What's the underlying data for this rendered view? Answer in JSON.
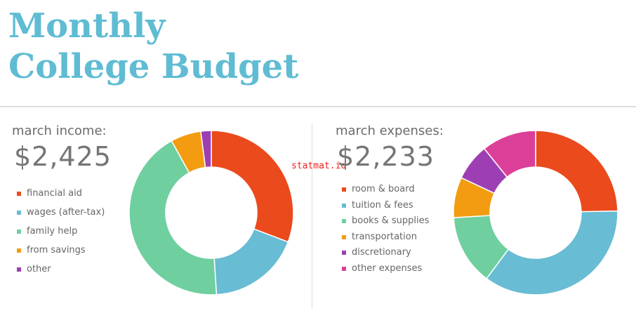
{
  "header": {
    "title_line1": "Monthly",
    "title_line2": "College Budget"
  },
  "watermark": "statmat.id",
  "colors": {
    "title": "#5fbcd3",
    "red": "#ea4a1c",
    "blue": "#68bcd4",
    "green": "#6fcf9f",
    "orange": "#f39c12",
    "purple": "#9d3fb3",
    "pink": "#dc3f98"
  },
  "income": {
    "label": "march income:",
    "total": "$2,425",
    "legend": [
      {
        "label": "financial aid",
        "color": "#ea4a1c"
      },
      {
        "label": "wages (after-tax)",
        "color": "#68bcd4"
      },
      {
        "label": "family help",
        "color": "#6fcf9f"
      },
      {
        "label": "from savings",
        "color": "#f39c12"
      },
      {
        "label": "other",
        "color": "#9d3fb3"
      }
    ]
  },
  "expenses": {
    "label": "march expenses:",
    "total": "$2,233",
    "legend": [
      {
        "label": "room & board",
        "color": "#ea4a1c"
      },
      {
        "label": "tuition & fees",
        "color": "#68bcd4"
      },
      {
        "label": "books & supplies",
        "color": "#6fcf9f"
      },
      {
        "label": "transportation",
        "color": "#f39c12"
      },
      {
        "label": "discretionary",
        "color": "#9d3fb3"
      },
      {
        "label": "other expenses",
        "color": "#dc3f98"
      }
    ]
  },
  "chart_data": [
    {
      "type": "pie",
      "categories": [
        "financial aid",
        "wages (after-tax)",
        "family help",
        "from savings",
        "other"
      ],
      "values": [
        747,
        441,
        1042,
        145,
        50
      ],
      "colors": [
        "#ea4a1c",
        "#68bcd4",
        "#6fcf9f",
        "#f39c12",
        "#9d3fb3"
      ],
      "total": 2425
    },
    {
      "type": "pie",
      "categories": [
        "room & board",
        "tuition & fees",
        "books & supplies",
        "transportation",
        "discretionary",
        "other expenses"
      ],
      "values": [
        551,
        793,
        309,
        178,
        162,
        240
      ],
      "colors": [
        "#ea4a1c",
        "#68bcd4",
        "#6fcf9f",
        "#f39c12",
        "#9d3fb3",
        "#dc3f98"
      ],
      "total": 2233
    }
  ]
}
